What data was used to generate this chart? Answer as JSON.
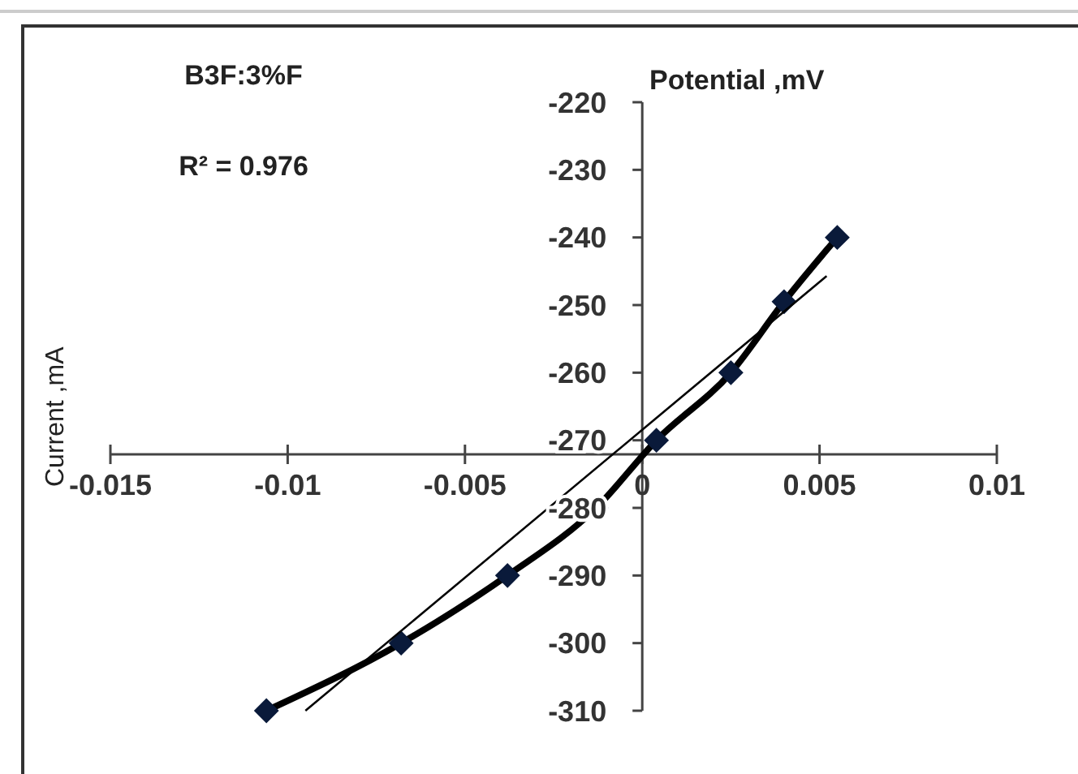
{
  "chart_data": {
    "type": "line",
    "title": "B3F:3%F",
    "xlabel": "Potential ,mV",
    "ylabel": "Current ,mA",
    "annotations": [
      "R² = 0.976"
    ],
    "x": [
      -0.0106,
      -0.0068,
      -0.0038,
      -0.0013,
      0.0004,
      0.0025,
      0.004,
      0.0055
    ],
    "series": [
      {
        "color": "#000000",
        "marker": "diamond",
        "values": [
          -310,
          -300,
          -290,
          -280,
          -270,
          -260,
          -249.5,
          -240
        ]
      },
      {
        "type": "line",
        "color": "#000000",
        "marker": "none",
        "x": [
          -0.0095,
          0.0052
        ],
        "values": [
          -310,
          -245.7
        ]
      }
    ],
    "xlim": [
      -0.015,
      0.01
    ],
    "xticks": [
      {
        "value": -0.015,
        "label": "-0.015"
      },
      {
        "value": -0.01,
        "label": "-0.01"
      },
      {
        "value": -0.005,
        "label": "-0.005"
      },
      {
        "value": 0,
        "label": "0"
      },
      {
        "value": 0.005,
        "label": "0.005"
      },
      {
        "value": 0.01,
        "label": "0.01"
      }
    ],
    "ylim": [
      -310,
      -220
    ],
    "yticks": [
      {
        "value": -220,
        "label": "-220"
      },
      {
        "value": -230,
        "label": "-230"
      },
      {
        "value": -240,
        "label": "-240"
      },
      {
        "value": -250,
        "label": "-250"
      },
      {
        "value": -260,
        "label": "-260"
      },
      {
        "value": -270,
        "label": "-270"
      },
      {
        "value": -280,
        "label": "-280"
      },
      {
        "value": -290,
        "label": "-290"
      },
      {
        "value": -300,
        "label": "-300"
      },
      {
        "value": -310,
        "label": "-310"
      }
    ],
    "grid": false
  }
}
